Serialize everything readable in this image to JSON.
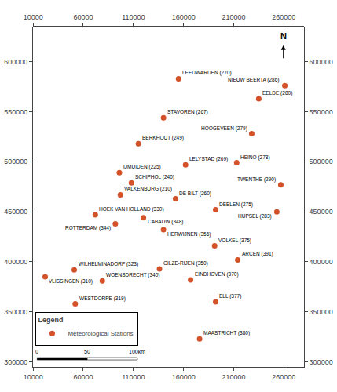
{
  "chart_data": {
    "type": "scatter",
    "xlim": [
      10000,
      280000
    ],
    "ylim": [
      295000,
      635000
    ],
    "xticks": [
      10000,
      60000,
      110000,
      160000,
      210000,
      260000
    ],
    "yticks": [
      300000,
      350000,
      400000,
      450000,
      500000,
      550000,
      600000
    ],
    "grid": false,
    "legend": "lower left",
    "legend_title": "Legend",
    "data_labels": true,
    "series": [
      {
        "name": "Meteorological Stations",
        "color": "#d4522a",
        "marker": "circle",
        "x": [
          155000,
          261000,
          235000,
          140000,
          228000,
          115000,
          213000,
          162000,
          257000,
          96000,
          108000,
          97000,
          152000,
          192000,
          253000,
          72000,
          92000,
          120000,
          140000,
          191000,
          214000,
          51000,
          136000,
          22000,
          79000,
          167000,
          192000,
          52000,
          176000
        ],
        "values": [
          583000,
          576000,
          563000,
          544000,
          528000,
          518000,
          499000,
          497000,
          477000,
          489000,
          479000,
          467000,
          463000,
          452000,
          450000,
          447000,
          438000,
          444000,
          432000,
          416000,
          402000,
          392000,
          393000,
          385000,
          381000,
          382000,
          360000,
          358000,
          323000
        ],
        "labels": [
          "LEEUWARDEN (270)",
          "NIEUW BEERTA (286)",
          "EELDE (280)",
          "STAVOREN (267)",
          "HOOGEVEEN (279)",
          "BERKHOUT (249)",
          "HEINO (278)",
          "LELYSTAD (269)",
          "TWENTHE (290)",
          "IJMUIDEN (225)",
          "SCHIPHOL (240)",
          "VALKENBURG (210)",
          "DE BILT (260)",
          "DEELEN (275)",
          "HUPSEL (283)",
          "HOEK VAN HOLLAND (330)",
          "ROTTERDAM (344)",
          "CABAUW (348)",
          "HERWIJNEN (356)",
          "VOLKEL (375)",
          "ARCEN (391)",
          "WILHELMINADORP (323)",
          "GILZE-RIJEN (350)",
          "VLISSINGEN (310)",
          "WOENSDRECHT (340)",
          "EINDHOVEN (370)",
          "ELL (377)",
          "WESTDORPE (319)",
          "MAASTRICHT (380)"
        ]
      }
    ],
    "annotations": [
      {
        "text": "0",
        "x": 14000,
        "y": 302000
      },
      {
        "text": "50",
        "x": 64000,
        "y": 302000
      },
      {
        "text": "100km",
        "x": 114000,
        "y": 302000
      },
      {
        "text": "N"
      }
    ]
  }
}
